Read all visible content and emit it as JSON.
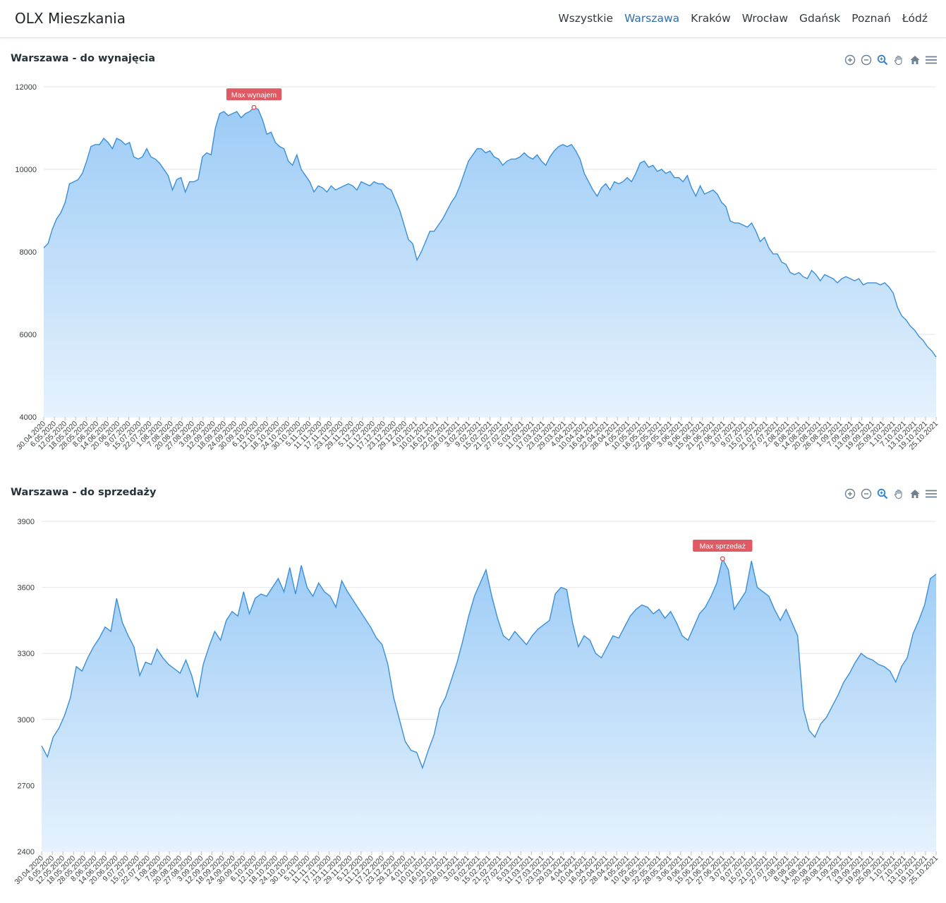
{
  "app": {
    "brand": "OLX Mieszkania",
    "nav": [
      "Wszystkie",
      "Warszawa",
      "Kraków",
      "Wrocław",
      "Gdańsk",
      "Poznań",
      "Łódź"
    ],
    "active_nav": 1
  },
  "toolbar_icons": [
    "zoom-in-icon",
    "zoom-out-icon",
    "zoom-selection-icon",
    "pan-hand-icon",
    "reset-home-icon",
    "menu-icon"
  ],
  "colors": {
    "line": "#3a8fd8",
    "area_top": "#9ccbf6",
    "area_bottom": "#e6f2fd",
    "annotation": "#e05a63",
    "grid": "#e6e6e6",
    "nav_active": "#2f6fb0"
  },
  "chart_data": [
    {
      "type": "area",
      "title": "Warszawa - do wynajęcia",
      "ylim": [
        4000,
        12000
      ],
      "yticks": [
        4000,
        6000,
        8000,
        10000,
        12000
      ],
      "grid": true,
      "xticks": [
        "30.04.2020",
        "6.05.2020",
        "12.05.2020",
        "18.05.2020",
        "28.05.2020",
        "8.06.2020",
        "14.06.2020",
        "20.06.2020",
        "9.07.2020",
        "15.07.2020",
        "22.07.2020",
        "1.08.2020",
        "7.08.2020",
        "20.08.2020",
        "27.08.2020",
        "3.09.2020",
        "12.09.2020",
        "18.09.2020",
        "24.09.2020",
        "30.09.2020",
        "6.10.2020",
        "12.10.2020",
        "18.10.2020",
        "24.10.2020",
        "30.10.2020",
        "5.11.2020",
        "11.11.2020",
        "17.11.2020",
        "23.11.2020",
        "29.11.2020",
        "5.12.2020",
        "11.12.2020",
        "17.12.2020",
        "23.12.2020",
        "29.12.2020",
        "4.01.2021",
        "10.01.2021",
        "16.01.2021",
        "22.01.2021",
        "28.01.2021",
        "3.02.2021",
        "9.02.2021",
        "15.02.2021",
        "21.02.2021",
        "27.02.2021",
        "5.03.2021",
        "11.03.2021",
        "17.03.2021",
        "23.03.2021",
        "29.03.2021",
        "4.04.2021",
        "10.04.2021",
        "16.04.2021",
        "22.04.2021",
        "28.04.2021",
        "4.05.2021",
        "10.05.2021",
        "16.05.2021",
        "22.05.2021",
        "28.05.2021",
        "3.06.2021",
        "9.06.2021",
        "15.06.2021",
        "21.06.2021",
        "27.06.2021",
        "3.07.2021",
        "9.07.2021",
        "15.07.2021",
        "21.07.2021",
        "27.07.2021",
        "2.08.2021",
        "8.08.2021",
        "14.08.2021",
        "20.08.2021",
        "26.08.2021",
        "1.09.2021",
        "7.09.2021",
        "13.09.2021",
        "19.09.2021",
        "25.09.2021",
        "1.10.2021",
        "7.10.2021",
        "13.10.2021",
        "19.10.2021",
        "25.10.2021"
      ],
      "series": [
        {
          "values": [
            8100,
            8200,
            8550,
            8800,
            8950,
            9200,
            9650,
            9700,
            9750,
            9900,
            10200,
            10550,
            10600,
            10600,
            10750,
            10650,
            10500,
            10750,
            10700,
            10600,
            10650,
            10300,
            10250,
            10300,
            10500,
            10300,
            10250,
            10150,
            10000,
            9850,
            9500,
            9750,
            9800,
            9450,
            9700,
            9700,
            9750,
            10300,
            10400,
            10350,
            11000,
            11350,
            11400,
            11300,
            11350,
            11400,
            11250,
            11350,
            11400,
            11500,
            11450,
            11200,
            10850,
            10900,
            10650,
            10550,
            10500,
            10200,
            10100,
            10350,
            10000,
            9850,
            9700,
            9450,
            9600,
            9550,
            9450,
            9600,
            9500,
            9550,
            9600,
            9650,
            9600,
            9500,
            9700,
            9650,
            9600,
            9700,
            9650,
            9650,
            9550,
            9500,
            9250,
            9000,
            8650,
            8300,
            8200,
            7800,
            8000,
            8250,
            8500,
            8500,
            8650,
            8800,
            9000,
            9200,
            9350,
            9600,
            9900,
            10200,
            10350,
            10500,
            10500,
            10400,
            10450,
            10300,
            10250,
            10100,
            10200,
            10250,
            10250,
            10300,
            10400,
            10300,
            10250,
            10350,
            10200,
            10100,
            10300,
            10450,
            10550,
            10600,
            10550,
            10600,
            10450,
            10250,
            9900,
            9700,
            9500,
            9350,
            9550,
            9650,
            9500,
            9700,
            9650,
            9700,
            9800,
            9700,
            9900,
            10150,
            10200,
            10050,
            10100,
            9950,
            10000,
            9900,
            9950,
            9800,
            9800,
            9700,
            9850,
            9550,
            9350,
            9600,
            9400,
            9450,
            9500,
            9400,
            9200,
            9100,
            8750,
            8700,
            8700,
            8650,
            8600,
            8700,
            8500,
            8250,
            8350,
            8100,
            7950,
            7950,
            7750,
            7700,
            7500,
            7450,
            7500,
            7400,
            7350,
            7550,
            7450,
            7300,
            7450,
            7400,
            7350,
            7250,
            7350,
            7400,
            7350,
            7300,
            7350,
            7200,
            7250,
            7250,
            7250,
            7200,
            7250,
            7150,
            7000,
            6650,
            6450,
            6350,
            6200,
            6100,
            5950,
            5850,
            5700,
            5600,
            5450
          ]
        }
      ],
      "annotation": {
        "label": "Max wynajem",
        "value": 11500
      }
    },
    {
      "type": "area",
      "title": "Warszawa - do sprzedaży",
      "ylim": [
        2400,
        3900
      ],
      "yticks": [
        2400,
        2700,
        3000,
        3300,
        3600,
        3900
      ],
      "grid": true,
      "xticks": [
        "30.04.2020",
        "6.05.2020",
        "12.05.2020",
        "18.05.2020",
        "28.05.2020",
        "8.06.2020",
        "14.06.2020",
        "20.06.2020",
        "9.07.2020",
        "15.07.2020",
        "22.07.2020",
        "1.08.2020",
        "7.08.2020",
        "20.08.2020",
        "27.08.2020",
        "3.09.2020",
        "12.09.2020",
        "18.09.2020",
        "24.09.2020",
        "30.09.2020",
        "6.10.2020",
        "12.10.2020",
        "18.10.2020",
        "24.10.2020",
        "30.10.2020",
        "5.11.2020",
        "11.11.2020",
        "17.11.2020",
        "23.11.2020",
        "29.11.2020",
        "5.12.2020",
        "11.12.2020",
        "17.12.2020",
        "23.12.2020",
        "29.12.2020",
        "4.01.2021",
        "10.01.2021",
        "16.01.2021",
        "22.01.2021",
        "28.01.2021",
        "3.02.2021",
        "9.02.2021",
        "15.02.2021",
        "21.02.2021",
        "27.02.2021",
        "5.03.2021",
        "11.03.2021",
        "17.03.2021",
        "23.03.2021",
        "29.03.2021",
        "4.04.2021",
        "10.04.2021",
        "16.04.2021",
        "22.04.2021",
        "28.04.2021",
        "4.05.2021",
        "10.05.2021",
        "16.05.2021",
        "22.05.2021",
        "28.05.2021",
        "3.06.2021",
        "9.06.2021",
        "15.06.2021",
        "21.06.2021",
        "27.06.2021",
        "3.07.2021",
        "9.07.2021",
        "15.07.2021",
        "21.07.2021",
        "27.07.2021",
        "2.08.2021",
        "8.08.2021",
        "14.08.2021",
        "20.08.2021",
        "26.08.2021",
        "1.09.2021",
        "7.09.2021",
        "13.09.2021",
        "19.09.2021",
        "25.09.2021",
        "1.10.2021",
        "7.10.2021",
        "13.10.2021",
        "19.10.2021",
        "25.10.2021"
      ],
      "series": [
        {
          "values": [
            2880,
            2830,
            2920,
            2960,
            3020,
            3100,
            3240,
            3220,
            3280,
            3330,
            3370,
            3420,
            3400,
            3550,
            3440,
            3380,
            3330,
            3200,
            3260,
            3250,
            3320,
            3280,
            3250,
            3230,
            3210,
            3270,
            3200,
            3100,
            3250,
            3330,
            3400,
            3360,
            3450,
            3490,
            3470,
            3580,
            3480,
            3550,
            3570,
            3560,
            3600,
            3640,
            3580,
            3690,
            3570,
            3700,
            3600,
            3560,
            3620,
            3580,
            3560,
            3510,
            3630,
            3580,
            3540,
            3500,
            3460,
            3420,
            3370,
            3340,
            3250,
            3100,
            3000,
            2900,
            2860,
            2850,
            2780,
            2860,
            2930,
            3050,
            3100,
            3180,
            3260,
            3360,
            3470,
            3560,
            3620,
            3680,
            3560,
            3460,
            3380,
            3360,
            3400,
            3370,
            3340,
            3380,
            3410,
            3430,
            3450,
            3570,
            3600,
            3590,
            3440,
            3330,
            3380,
            3360,
            3300,
            3280,
            3330,
            3380,
            3370,
            3420,
            3470,
            3500,
            3520,
            3510,
            3480,
            3500,
            3460,
            3490,
            3440,
            3380,
            3360,
            3420,
            3480,
            3510,
            3560,
            3620,
            3730,
            3680,
            3500,
            3540,
            3580,
            3720,
            3600,
            3580,
            3560,
            3500,
            3450,
            3500,
            3440,
            3380,
            3050,
            2950,
            2920,
            2980,
            3010,
            3060,
            3110,
            3170,
            3210,
            3260,
            3300,
            3280,
            3270,
            3250,
            3240,
            3220,
            3170,
            3240,
            3280,
            3390,
            3450,
            3520,
            3640,
            3660
          ]
        }
      ],
      "annotation": {
        "label": "Max sprzedaż",
        "value": 3730
      }
    }
  ]
}
